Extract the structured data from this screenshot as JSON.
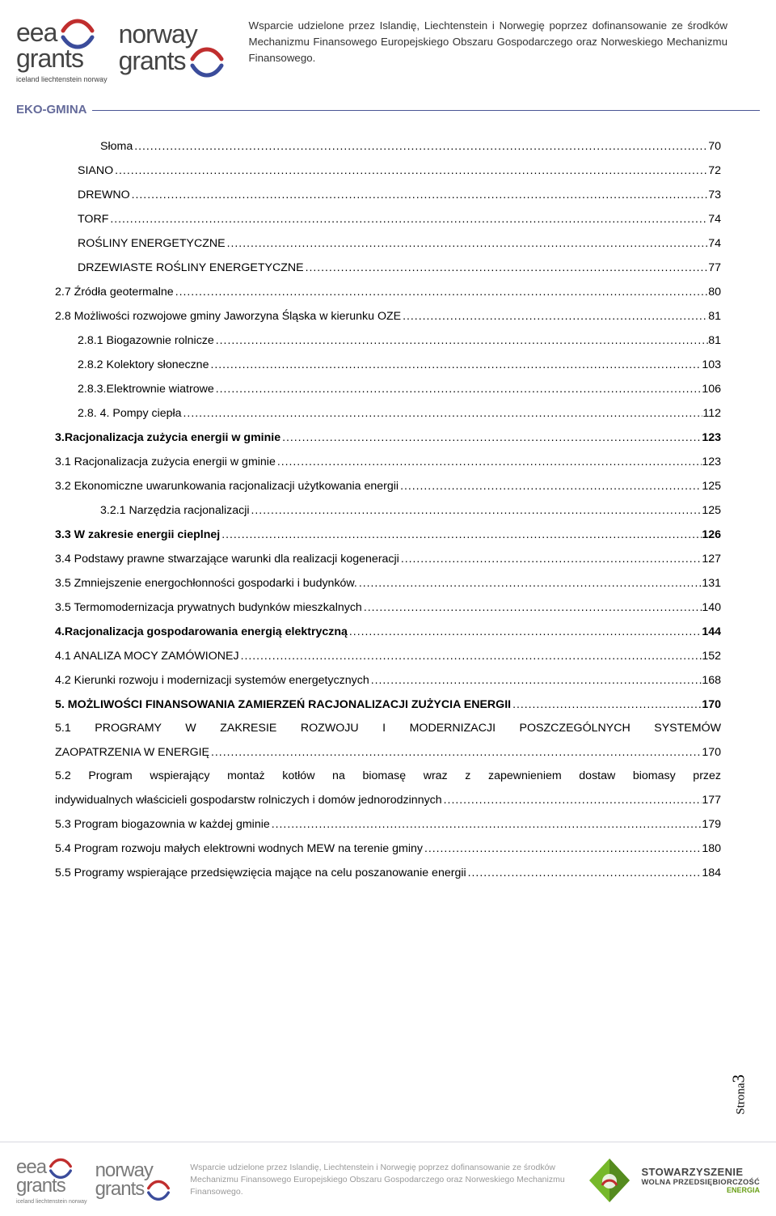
{
  "colors": {
    "brand_blue": "#646A9A",
    "rule_blue": "#4A5594",
    "text": "#000000",
    "footer_text": "#9a9a9a",
    "swoosh_red": "#C02E2E",
    "swoosh_blue": "#3B4C9B",
    "assoc_green": "#76B82A",
    "assoc_green_dark": "#558B1F"
  },
  "header": {
    "logo_eea": "eea",
    "logo_norway": "norway",
    "logo_grants": "grants",
    "logo_sub": "iceland liechtenstein norway",
    "text": "Wsparcie udzielone przez Islandię, Liechtenstein i Norwegię poprzez dofinansowanie ze środków Mechanizmu Finansowego Europejskiego Obszaru Gospodarczego oraz Norweskiego Mechanizmu Finansowego."
  },
  "brand": {
    "label": "EKO-GMINA"
  },
  "toc": [
    {
      "label": "Słoma",
      "page": "70",
      "indent": 2
    },
    {
      "label": "SIANO",
      "page": "72",
      "indent": 1,
      "sc": true
    },
    {
      "label": "DREWNO",
      "page": "73",
      "indent": 1,
      "sc": true
    },
    {
      "label": "TORF",
      "page": "74",
      "indent": 1,
      "sc": true
    },
    {
      "label": "ROŚLINY ENERGETYCZNE",
      "page": "74",
      "indent": 1,
      "sc": true
    },
    {
      "label": "DRZEWIASTE ROŚLINY ENERGETYCZNE",
      "page": "77",
      "indent": 1,
      "sc": true
    },
    {
      "label": "2.7 Źródła geotermalne",
      "page": "80",
      "indent": 0
    },
    {
      "label": "2.8 Możliwości rozwojowe gminy Jaworzyna Śląska w kierunku OZE",
      "page": "81",
      "indent": 0
    },
    {
      "label": "2.8.1 Biogazownie rolnicze",
      "page": "81",
      "indent": 1
    },
    {
      "label": "2.8.2  Kolektory słoneczne",
      "page": "103",
      "indent": 1
    },
    {
      "label": "2.8.3.Elektrownie wiatrowe",
      "page": "106",
      "indent": 1
    },
    {
      "label": "2.8. 4. Pompy ciepła",
      "page": "112",
      "indent": 1
    },
    {
      "label": "3.Racjonalizacja zużycia energii w gminie",
      "page": "123",
      "indent": 0,
      "bold": true
    },
    {
      "label": "3.1 Racjonalizacja zużycia energii w gminie",
      "page": "123",
      "indent": 0
    },
    {
      "label": "3.2 Ekonomiczne uwarunkowania racjonalizacji użytkowania energii",
      "page": "125",
      "indent": 0
    },
    {
      "label": "3.2.1 Narzędzia racjonalizacji",
      "page": "125",
      "indent": 2
    },
    {
      "label": "3.3  W zakresie energii cieplnej",
      "page": "126",
      "indent": 0,
      "bold": true
    },
    {
      "label": "3.4 Podstawy prawne stwarzające warunki dla realizacji kogeneracji",
      "page": "127",
      "indent": 0
    },
    {
      "label": "3.5 Zmniejszenie energochłonności gospodarki i budynków.",
      "page": "131",
      "indent": 0
    },
    {
      "label": "3.5 Termomodernizacja prywatnych budynków mieszkalnych",
      "page": "140",
      "indent": 0
    },
    {
      "label": "4.Racjonalizacja gospodarowania energią elektryczną",
      "page": "144",
      "indent": 0,
      "bold": true
    },
    {
      "label": "4.1 ANALIZA MOCY ZAMÓWIONEJ",
      "page": "152",
      "indent": 0
    },
    {
      "label": "4.2 Kierunki  rozwoju i modernizacji systemów energetycznych",
      "page": "168",
      "indent": 0
    },
    {
      "label": "5. MOŻLIWOŚCI FINANSOWANIA ZAMIERZEŃ RACJONALIZACJI ZUŻYCIA ENERGII",
      "page": "170",
      "indent": 0,
      "bold": true
    },
    {
      "label_a": "5.1 PROGRAMY W ZAKRESIE ROZWOJU I MODERNIZACJI POSZCZEGÓLNYCH SYSTEMÓW",
      "label_b": "ZAOPATRZENIA W ENERGIĘ",
      "page": "170",
      "indent": 0,
      "multi": true
    },
    {
      "label_a": "5.2   Program wspierający montaż kotłów na biomasę wraz z zapewnieniem dostaw biomasy przez",
      "label_b": "indywidualnych właścicieli gospodarstw rolniczych i domów jednorodzinnych",
      "page": "177",
      "indent": 0,
      "multi_b": true
    },
    {
      "label": "5.3 Program  biogazownia w każdej gminie",
      "page": "179",
      "indent": 0
    },
    {
      "label": "5.4 Program  rozwoju małych elektrowni wodnych MEW na terenie gminy",
      "page": "180",
      "indent": 0
    },
    {
      "label": "5.5 Programy wspierające przedsięwzięcia mające na celu poszanowanie energii",
      "page": "184",
      "indent": 0
    }
  ],
  "page_number": {
    "word": "Strona",
    "num": "3"
  },
  "footer": {
    "text": "Wsparcie udzielone przez Islandię, Liechtenstein i Norwegię poprzez dofinansowanie ze środków Mechanizmu Finansowego Europejskiego Obszaru Gospodarczego oraz Norweskiego Mechanizmu Finansowego.",
    "assoc_line1": "STOWARZYSZENIE",
    "assoc_line2": "WOLNA PRZEDSIĘBIORCZOŚĆ",
    "assoc_line3": "ENERGIA"
  }
}
